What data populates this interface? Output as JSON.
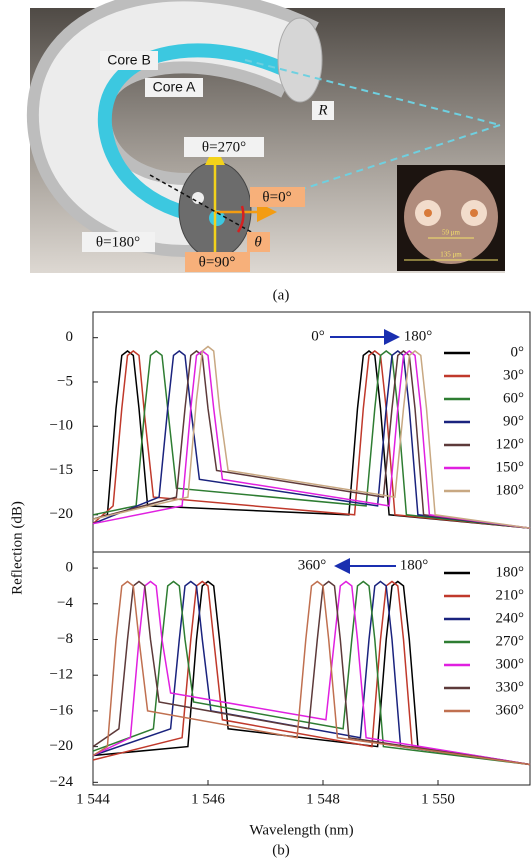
{
  "figure_a": {
    "labels": {
      "core_b": "Core B",
      "core_a": "Core A",
      "r": "R",
      "theta270": "θ=270°",
      "theta0": "θ=0°",
      "theta180": "θ=180°",
      "theta": "θ",
      "theta90": "θ=90°",
      "pitch": "59 μm",
      "diameter": "135 μm"
    },
    "panel_label": "(a)"
  },
  "figure_b": {
    "ylabel": "Reflection (dB)",
    "panel_label": "(b)"
  },
  "chart_data": [
    {
      "type": "line",
      "ylim": [
        -24.2,
        2.9
      ],
      "xlim": [
        1544,
        1551.6
      ],
      "yticks": [
        {
          "value": 0,
          "label": "0"
        },
        {
          "value": -5,
          "label": "−5"
        },
        {
          "value": -10,
          "label": "−10"
        },
        {
          "value": -15,
          "label": "−15"
        },
        {
          "value": -20,
          "label": "−20"
        }
      ],
      "annotations": [
        "0°",
        "180°"
      ],
      "series": [
        {
          "name": "0°",
          "color": "#000000",
          "x": [
            1544,
            1544.25,
            1544.4,
            1544.5,
            1544.6,
            1544.7,
            1544.8,
            1544.95,
            1548.45,
            1548.6,
            1548.7,
            1548.8,
            1548.9,
            1549.0,
            1549.15,
            1551.6
          ],
          "values": [
            -20.5,
            -20,
            -8,
            -2,
            -1.5,
            -2,
            -8,
            -19,
            -20,
            -8,
            -2,
            -1.5,
            -2,
            -8,
            -20,
            -21.5
          ]
        },
        {
          "name": "30°",
          "color": "#c0392b",
          "x": [
            1544,
            1544.35,
            1544.5,
            1544.6,
            1544.7,
            1544.8,
            1544.9,
            1545.05,
            1548.55,
            1548.7,
            1548.8,
            1548.9,
            1549.0,
            1549.1,
            1549.25,
            1551.6
          ],
          "values": [
            -21,
            -19,
            -8,
            -2,
            -1.5,
            -2,
            -9,
            -18,
            -20,
            -8,
            -2,
            -1.5,
            -2,
            -8,
            -20,
            -21.5
          ]
        },
        {
          "name": "60°",
          "color": "#2e7d32",
          "x": [
            1544,
            1544.75,
            1544.9,
            1545.0,
            1545.1,
            1545.2,
            1545.3,
            1545.45,
            1548.75,
            1548.9,
            1549.0,
            1549.1,
            1549.2,
            1549.3,
            1549.45,
            1551.6
          ],
          "values": [
            -20,
            -19,
            -8,
            -2,
            -1.5,
            -2,
            -8,
            -17,
            -19,
            -8,
            -2,
            -1.5,
            -2,
            -8,
            -20,
            -21.5
          ]
        },
        {
          "name": "90°",
          "color": "#1a237e",
          "x": [
            1544,
            1545.15,
            1545.3,
            1545.4,
            1545.5,
            1545.6,
            1545.7,
            1545.85,
            1548.95,
            1549.1,
            1549.2,
            1549.3,
            1549.4,
            1549.5,
            1549.65,
            1551.6
          ],
          "values": [
            -21,
            -18,
            -8,
            -2,
            -1.5,
            -2,
            -8,
            -16,
            -19,
            -8,
            -2,
            -1.5,
            -2,
            -8,
            -20,
            -21.5
          ]
        },
        {
          "name": "120°",
          "color": "#5d3a3a",
          "x": [
            1544,
            1545.45,
            1545.6,
            1545.7,
            1545.8,
            1545.9,
            1546.0,
            1546.15,
            1549.05,
            1549.2,
            1549.3,
            1549.4,
            1549.5,
            1549.6,
            1549.75,
            1551.6
          ],
          "values": [
            -20.5,
            -18,
            -8,
            -2,
            -1.5,
            -2,
            -8,
            -15,
            -18,
            -8,
            -2,
            -1.5,
            -2,
            -8,
            -20,
            -21.5
          ]
        },
        {
          "name": "150°",
          "color": "#e020e0",
          "x": [
            1544,
            1545.55,
            1545.7,
            1545.8,
            1545.9,
            1546.0,
            1546.1,
            1546.25,
            1549.15,
            1549.3,
            1549.4,
            1549.5,
            1549.6,
            1549.7,
            1549.85,
            1551.6
          ],
          "values": [
            -21,
            -19,
            -8,
            -2,
            -1.5,
            -2,
            -8,
            -16,
            -19,
            -8,
            -2,
            -1.5,
            -2,
            -8,
            -20,
            -21.5
          ]
        },
        {
          "name": "180°",
          "color": "#c8a882",
          "x": [
            1544,
            1545.65,
            1545.8,
            1545.9,
            1546.0,
            1546.1,
            1546.2,
            1546.35,
            1549.25,
            1549.4,
            1549.5,
            1549.6,
            1549.7,
            1549.8,
            1549.95,
            1551.6
          ],
          "values": [
            -20.5,
            -18,
            -7,
            -1.5,
            -1,
            -1.5,
            -8,
            -15,
            -18,
            -8,
            -2,
            -1.5,
            -2,
            -8,
            -20,
            -21.5
          ]
        }
      ]
    },
    {
      "type": "line",
      "ylim": [
        -24.3,
        1.8
      ],
      "xlim": [
        1544,
        1551.6
      ],
      "xlabel": "Wavelength (nm)",
      "yticks": [
        {
          "value": 0,
          "label": "0"
        },
        {
          "value": -4,
          "label": "−4"
        },
        {
          "value": -8,
          "label": "−8"
        },
        {
          "value": -12,
          "label": "−12"
        },
        {
          "value": -16,
          "label": "−16"
        },
        {
          "value": -20,
          "label": "−20"
        },
        {
          "value": -24,
          "label": "−24"
        }
      ],
      "xticks": [
        {
          "value": 1544,
          "label": "1 544"
        },
        {
          "value": 1546,
          "label": "1 546"
        },
        {
          "value": 1548,
          "label": "1 548"
        },
        {
          "value": 1550,
          "label": "1 550"
        }
      ],
      "annotations": [
        "360°",
        "180°"
      ],
      "series": [
        {
          "name": "180°",
          "color": "#000000",
          "x": [
            1544,
            1545.65,
            1545.8,
            1545.9,
            1546.0,
            1546.1,
            1546.2,
            1546.35,
            1548.95,
            1549.1,
            1549.2,
            1549.3,
            1549.4,
            1549.5,
            1549.65,
            1551.6
          ],
          "values": [
            -21,
            -20,
            -8,
            -2,
            -1.5,
            -2,
            -8,
            -18,
            -20,
            -8,
            -2,
            -1.5,
            -2,
            -8,
            -20,
            -22
          ]
        },
        {
          "name": "210°",
          "color": "#c0392b",
          "x": [
            1544,
            1545.55,
            1545.7,
            1545.8,
            1545.9,
            1546.0,
            1546.1,
            1546.25,
            1548.85,
            1549.0,
            1549.1,
            1549.2,
            1549.3,
            1549.4,
            1549.55,
            1551.6
          ],
          "values": [
            -21.5,
            -19,
            -8,
            -2,
            -1.5,
            -2,
            -8,
            -17,
            -20,
            -8,
            -2,
            -1.5,
            -2,
            -8,
            -20,
            -22
          ]
        },
        {
          "name": "240°",
          "color": "#1a237e",
          "x": [
            1544,
            1545.35,
            1545.5,
            1545.6,
            1545.7,
            1545.8,
            1545.9,
            1546.05,
            1548.65,
            1548.8,
            1548.9,
            1549.0,
            1549.1,
            1549.2,
            1549.35,
            1551.6
          ],
          "values": [
            -21,
            -18,
            -8,
            -2,
            -1.5,
            -2,
            -8,
            -16,
            -19,
            -8,
            -2,
            -1.5,
            -2,
            -8,
            -20,
            -22
          ]
        },
        {
          "name": "270°",
          "color": "#2e7d32",
          "x": [
            1544,
            1545.05,
            1545.2,
            1545.3,
            1545.4,
            1545.5,
            1545.6,
            1545.75,
            1548.35,
            1548.5,
            1548.6,
            1548.7,
            1548.8,
            1548.9,
            1549.05,
            1551.6
          ],
          "values": [
            -20.5,
            -18,
            -8,
            -2,
            -1.5,
            -2,
            -8,
            -15,
            -18,
            -8,
            -2,
            -1.5,
            -2,
            -8,
            -20,
            -22
          ]
        },
        {
          "name": "300°",
          "color": "#e020e0",
          "x": [
            1544,
            1544.65,
            1544.8,
            1544.9,
            1545.0,
            1545.1,
            1545.2,
            1545.35,
            1548.05,
            1548.2,
            1548.3,
            1548.4,
            1548.5,
            1548.6,
            1548.75,
            1551.6
          ],
          "values": [
            -21,
            -19,
            -8,
            -2,
            -1.5,
            -2,
            -8,
            -14,
            -17,
            -8,
            -2,
            -1.5,
            -2,
            -8,
            -19,
            -22
          ]
        },
        {
          "name": "330°",
          "color": "#5d3a3a",
          "x": [
            1544,
            1544.45,
            1544.6,
            1544.7,
            1544.8,
            1544.9,
            1545.0,
            1545.15,
            1547.75,
            1547.9,
            1548.0,
            1548.1,
            1548.2,
            1548.3,
            1548.45,
            1551.6
          ],
          "values": [
            -20,
            -18,
            -8,
            -2,
            -1.5,
            -2,
            -8,
            -15,
            -18,
            -8,
            -2,
            -1.5,
            -2,
            -8,
            -19,
            -22
          ]
        },
        {
          "name": "360°",
          "color": "#c07050",
          "x": [
            1544,
            1544.25,
            1544.4,
            1544.5,
            1544.6,
            1544.7,
            1544.8,
            1544.95,
            1547.55,
            1547.7,
            1547.8,
            1547.9,
            1548.0,
            1548.1,
            1548.25,
            1551.6
          ],
          "values": [
            -21,
            -20,
            -8,
            -2,
            -1.5,
            -2,
            -8,
            -16,
            -19,
            -8,
            -2,
            -1.5,
            -2,
            -8,
            -19,
            -22
          ]
        }
      ]
    }
  ]
}
